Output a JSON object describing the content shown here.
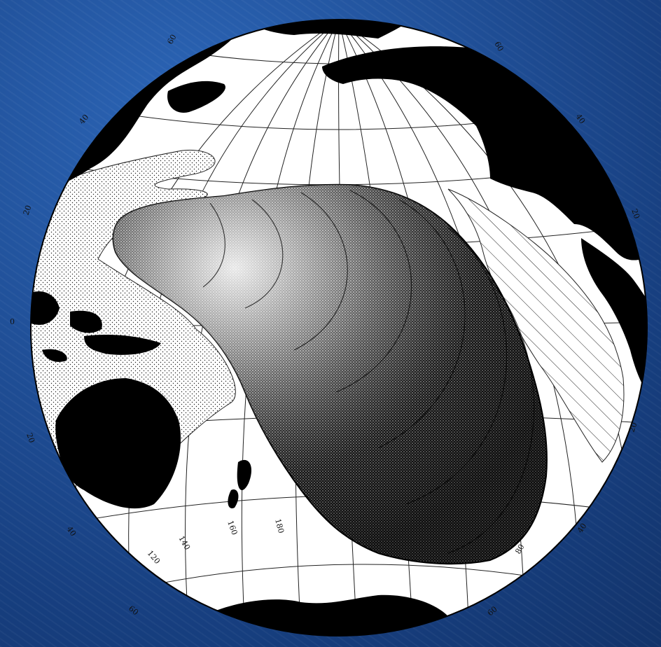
{
  "map": {
    "projection": "orthographic",
    "theme_colors": {
      "background": "#1d4f97",
      "ocean": "#ffffff",
      "land": "#000000",
      "lines": "#111111"
    },
    "latitude_labels_left": [
      "60",
      "40",
      "20",
      "0",
      "20",
      "40",
      "60"
    ],
    "latitude_labels_right": [
      "60",
      "40",
      "20",
      "20",
      "40",
      "60"
    ],
    "longitude_labels": [
      "120",
      "140",
      "160",
      "180",
      "80"
    ],
    "legend_patterns": [
      "stipple",
      "hatch",
      "shell-illustration"
    ]
  }
}
